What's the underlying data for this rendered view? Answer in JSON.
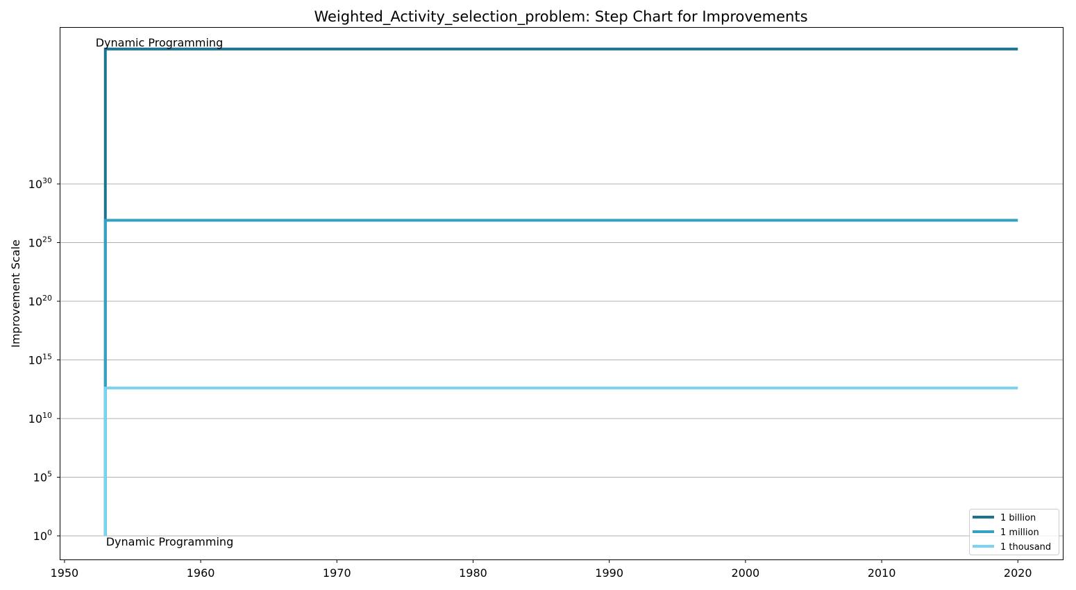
{
  "chart_data": {
    "type": "line",
    "title": "Weighted_Activity_selection_problem: Step Chart for Improvements",
    "xlabel": "",
    "ylabel": "Improvement Scale",
    "x_ticks": [
      "1950",
      "1960",
      "1970",
      "1980",
      "1990",
      "2000",
      "2010",
      "2020"
    ],
    "y_ticks": [
      {
        "base": "10",
        "exp": "0",
        "log10": 0
      },
      {
        "base": "10",
        "exp": "5",
        "log10": 5
      },
      {
        "base": "10",
        "exp": "10",
        "log10": 10
      },
      {
        "base": "10",
        "exp": "15",
        "log10": 15
      },
      {
        "base": "10",
        "exp": "20",
        "log10": 20
      },
      {
        "base": "10",
        "exp": "25",
        "log10": 25
      },
      {
        "base": "10",
        "exp": "30",
        "log10": 30
      }
    ],
    "y_scale": "log",
    "xlim": [
      1949.7,
      2023.3
    ],
    "ylim_log10": [
      -2,
      41.5
    ],
    "grid": "horizontal",
    "legend_position": "bottom-right",
    "series": [
      {
        "name": "1 billion",
        "color": "#1b7390",
        "x": [
          1953,
          1953,
          2020
        ],
        "y_log10": [
          0,
          41.5,
          41.5
        ],
        "note": "approx 10^41.5 at 1953"
      },
      {
        "name": "1 million",
        "color": "#33a0c4",
        "x": [
          1953,
          1953,
          2020
        ],
        "y_log10": [
          0,
          26.9,
          26.9
        ]
      },
      {
        "name": "1 thousand",
        "color": "#7ad3f0",
        "x": [
          1953,
          1953,
          2020
        ],
        "y_log10": [
          0,
          12.6,
          12.6
        ]
      }
    ],
    "annotations": [
      {
        "text": "Dynamic Programming",
        "x": 1953,
        "position": "top"
      },
      {
        "text": "Dynamic Programming",
        "x": 1953,
        "position": "bottom"
      }
    ]
  }
}
